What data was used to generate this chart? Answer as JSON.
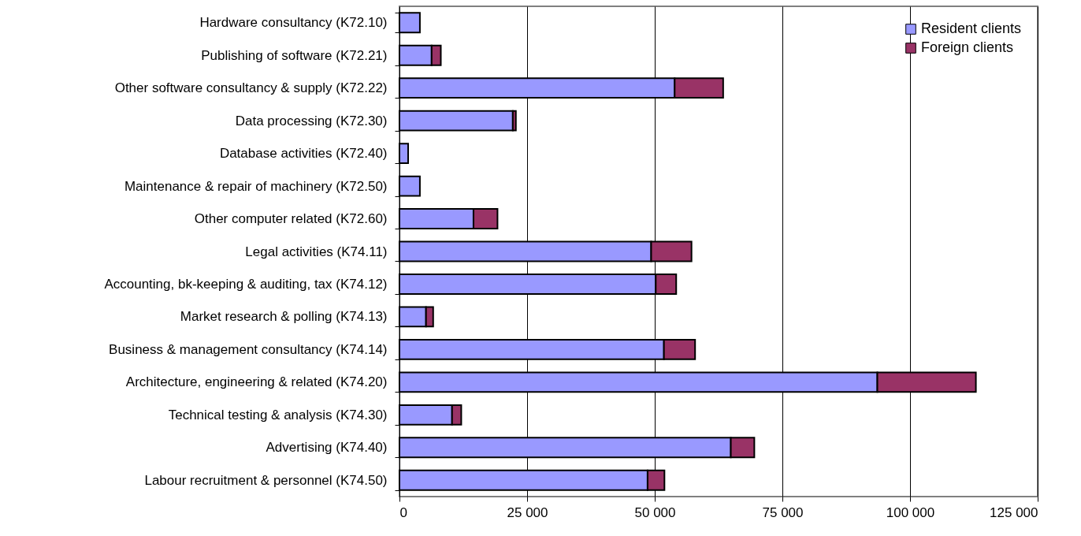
{
  "chart_data": {
    "type": "bar",
    "orientation": "horizontal",
    "stacked": true,
    "categories": [
      "Hardware consultancy (K72.10)",
      "Publishing of software (K72.21)",
      "Other software consultancy & supply (K72.22)",
      "Data processing (K72.30)",
      "Database activities (K72.40)",
      "Maintenance & repair of machinery (K72.50)",
      "Other computer related (K72.60)",
      "Legal activities (K74.11)",
      "Accounting, bk-keeping & auditing, tax (K74.12)",
      "Market research & polling (K74.13)",
      "Business & management consultancy (K74.14)",
      "Architecture, engineering & related (K74.20)",
      "Technical testing & analysis (K74.30)",
      "Advertising (K74.40)",
      "Labour recruitment & personnel (K74.50)"
    ],
    "series": [
      {
        "name": "Resident clients",
        "color": "#9999ff",
        "values": [
          4000,
          6300,
          53900,
          22200,
          1700,
          4000,
          14500,
          49300,
          50200,
          5200,
          51800,
          93600,
          10300,
          64900,
          48600
        ]
      },
      {
        "name": "Foreign clients",
        "color": "#993366",
        "values": [
          null,
          1800,
          9500,
          600,
          null,
          null,
          4700,
          7900,
          4000,
          1400,
          6100,
          19300,
          1800,
          4600,
          3300
        ]
      }
    ],
    "xlim": [
      0,
      125000
    ],
    "xticks": [
      0,
      {
        "value": 25000,
        "label": "25 000"
      },
      {
        "value": 50000,
        "label": "50 000"
      },
      {
        "value": 75000,
        "label": "75 000"
      },
      {
        "value": 100000,
        "label": "100 000"
      },
      {
        "value": 125000,
        "label": "125 000"
      }
    ],
    "grid": "x",
    "legend": "top right"
  }
}
